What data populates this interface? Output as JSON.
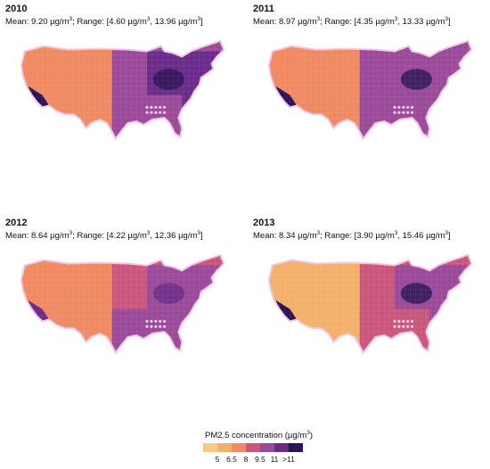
{
  "panels": [
    {
      "year": "2010",
      "mean_label": "Mean: 9.20 µg/m",
      "range_label": "; Range: [4.60 µg/m",
      "range_mid": ", 13.96 µg/m",
      "range_end": "]",
      "sup": "3"
    },
    {
      "year": "2011",
      "mean_label": "Mean: 8.97 µg/m",
      "range_label": "; Range: [4.35 µg/m",
      "range_mid": ", 13.33 µg/m",
      "range_end": "]",
      "sup": "3"
    },
    {
      "year": "2012",
      "mean_label": "Mean: 8.64 µg/m",
      "range_label": "; Range: [4.22 µg/m",
      "range_mid": ", 12.36 µg/m",
      "range_end": "]",
      "sup": "3"
    },
    {
      "year": "2013",
      "mean_label": "Mean: 8.34 µg/m",
      "range_label": "; Range: [3.90 µg/m",
      "range_mid": ", 15.46 µg/m",
      "range_end": "]",
      "sup": "3"
    }
  ],
  "legend": {
    "title": "PM2.5 concentration (µg/m",
    "title_sup": "3",
    "title_end": ")",
    "ticks": [
      "5",
      "6.5",
      "8",
      "9.5",
      "11",
      ">11"
    ],
    "colors": [
      "#f3b06a",
      "#ef8a62",
      "#c9577c",
      "#9b4a9a",
      "#6a2c8a",
      "#2a1456"
    ]
  }
}
